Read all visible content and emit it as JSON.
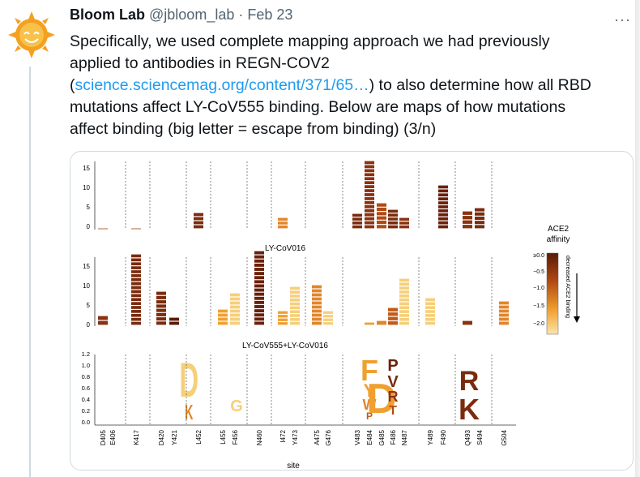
{
  "tweet": {
    "author_name": "Bloom Lab",
    "handle": "@jbloom_lab",
    "separator": "·",
    "date": "Feb 23",
    "more_label": "···",
    "line1": "Specifically, we used complete mapping approach we had previously",
    "line2": "applied to antibodies in REGN-COV2",
    "line3_open": "(",
    "link_text": "science.sciencemag.org/content/371/65…",
    "line3_rest": ") to also determine how all RBD",
    "line4": "mutations affect LY-CoV555 binding. Below are maps of how mutations",
    "line5": "affect binding (big letter = escape from binding) (3/n)"
  },
  "figure": {
    "panel2_title": "LY-CoV016",
    "panel3_title": "LY-CoV555+LY-CoV016",
    "xlabel": "site",
    "sites": [
      "D405",
      "E406",
      "K417",
      "D420",
      "Y421",
      "L452",
      "L455",
      "F456",
      "N460",
      "I472",
      "Y473",
      "A475",
      "G476",
      "V483",
      "E484",
      "G485",
      "F486",
      "N487",
      "Y489",
      "F490",
      "Q493",
      "S494",
      "G504"
    ],
    "colorbar_title_1": "ACE2",
    "colorbar_title_2": "affinity",
    "colorbar_ticks": [
      "≥0.0",
      "−0.5",
      "−1.0",
      "−1.5",
      "−2.0"
    ],
    "colorbar_side_label": "decreased ACE2 binding",
    "panel1_yticks": [
      "0",
      "5",
      "10",
      "15"
    ],
    "panel2_yticks": [
      "0",
      "5",
      "10",
      "15"
    ],
    "panel3_yticks": [
      "0.0",
      "0.2",
      "0.4",
      "0.6",
      "0.8",
      "1.0",
      "1.2"
    ],
    "letters_panel3": [
      "G",
      "D",
      "K",
      "F",
      "Y",
      "W",
      "P",
      "D",
      "P",
      "V",
      "R",
      "T",
      "R",
      "K"
    ]
  },
  "colors": {
    "link": "#1d9bf0",
    "dark_red": "#7a2b0e",
    "orange": "#f0a030",
    "light": "#f7d796"
  }
}
